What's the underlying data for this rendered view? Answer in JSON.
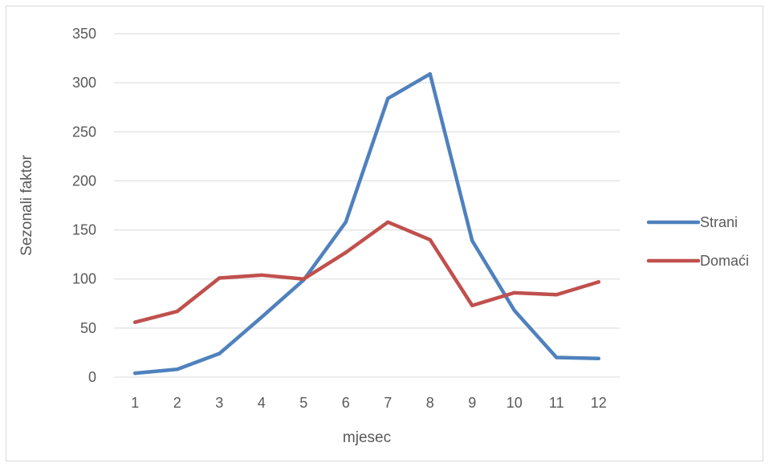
{
  "chart_data": {
    "type": "line",
    "title": "",
    "xlabel": "mjesec",
    "ylabel": "Sezonali faktor",
    "categories": [
      "1",
      "2",
      "3",
      "4",
      "5",
      "6",
      "7",
      "8",
      "9",
      "10",
      "11",
      "12"
    ],
    "ylim": [
      0,
      350
    ],
    "yticks": [
      0,
      50,
      100,
      150,
      200,
      250,
      300,
      350
    ],
    "grid": true,
    "legend_position": "right",
    "series": [
      {
        "name": "Strani",
        "color": "#4f81bd",
        "values": [
          4,
          8,
          24,
          61,
          99,
          158,
          284,
          309,
          139,
          68,
          20,
          19
        ]
      },
      {
        "name": "Domaći",
        "color": "#c0504d",
        "values": [
          56,
          67,
          101,
          104,
          100,
          127,
          158,
          140,
          73,
          86,
          84,
          97
        ]
      }
    ]
  }
}
